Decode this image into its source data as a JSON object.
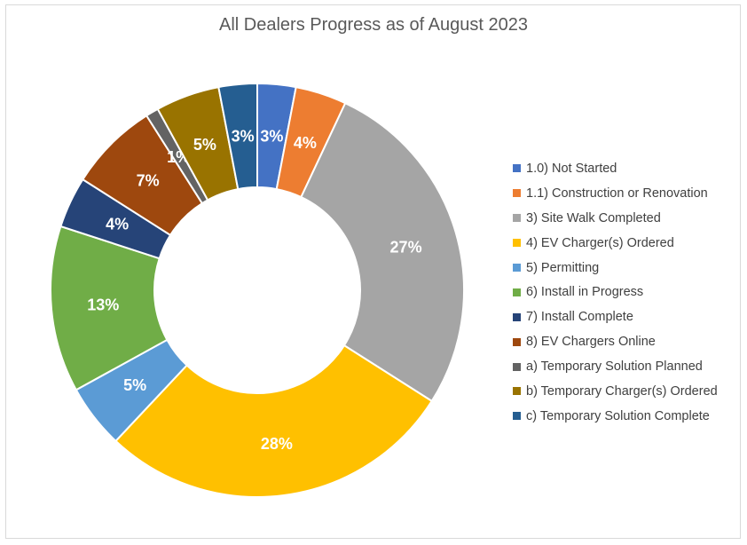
{
  "chart_data": {
    "type": "pie",
    "variant": "donut",
    "title": "All Dealers Progress as of August 2023",
    "legend_position": "right",
    "slices": [
      {
        "label": "1.0) Not Started",
        "value": 3,
        "display": "3%",
        "color": "#4472C4"
      },
      {
        "label": "1.1) Construction or Renovation",
        "value": 4,
        "display": "4%",
        "color": "#ED7D31"
      },
      {
        "label": "3) Site Walk Completed",
        "value": 27,
        "display": "27%",
        "color": "#A5A5A5"
      },
      {
        "label": "4) EV Charger(s) Ordered",
        "value": 28,
        "display": "28%",
        "color": "#FFC000"
      },
      {
        "label": "5) Permitting",
        "value": 5,
        "display": "5%",
        "color": "#5B9BD5"
      },
      {
        "label": "6) Install in Progress",
        "value": 13,
        "display": "13%",
        "color": "#70AD47"
      },
      {
        "label": "7) Install Complete",
        "value": 4,
        "display": "4%",
        "color": "#264478"
      },
      {
        "label": "8) EV Chargers Online",
        "value": 7,
        "display": "7%",
        "color": "#9E480E"
      },
      {
        "label": "a) Temporary Solution Planned",
        "value": 1,
        "display": "1%",
        "color": "#636363"
      },
      {
        "label": "b) Temporary Charger(s) Ordered",
        "value": 5,
        "display": "5%",
        "color": "#997300"
      },
      {
        "label": "c) Temporary Solution Complete",
        "value": 3,
        "display": "3%",
        "color": "#255E91"
      }
    ]
  }
}
